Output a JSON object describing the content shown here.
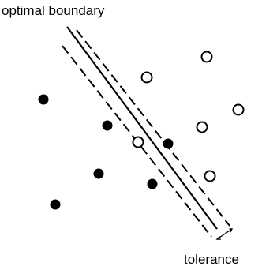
{
  "labels": {
    "boundary": "optimal boundary",
    "tolerance": "tolerance"
  },
  "colors": {
    "ink": "#000000",
    "background": "#ffffff"
  },
  "points": {
    "filled_class": [
      {
        "id": "f1"
      },
      {
        "id": "f2"
      },
      {
        "id": "f3"
      },
      {
        "id": "f4"
      },
      {
        "id": "f5"
      },
      {
        "id": "f6"
      },
      {
        "id": "f7"
      }
    ],
    "hollow_class": [
      {
        "id": "h1"
      },
      {
        "id": "h2"
      },
      {
        "id": "h3"
      },
      {
        "id": "h4"
      },
      {
        "id": "h5"
      },
      {
        "id": "h6"
      }
    ]
  }
}
